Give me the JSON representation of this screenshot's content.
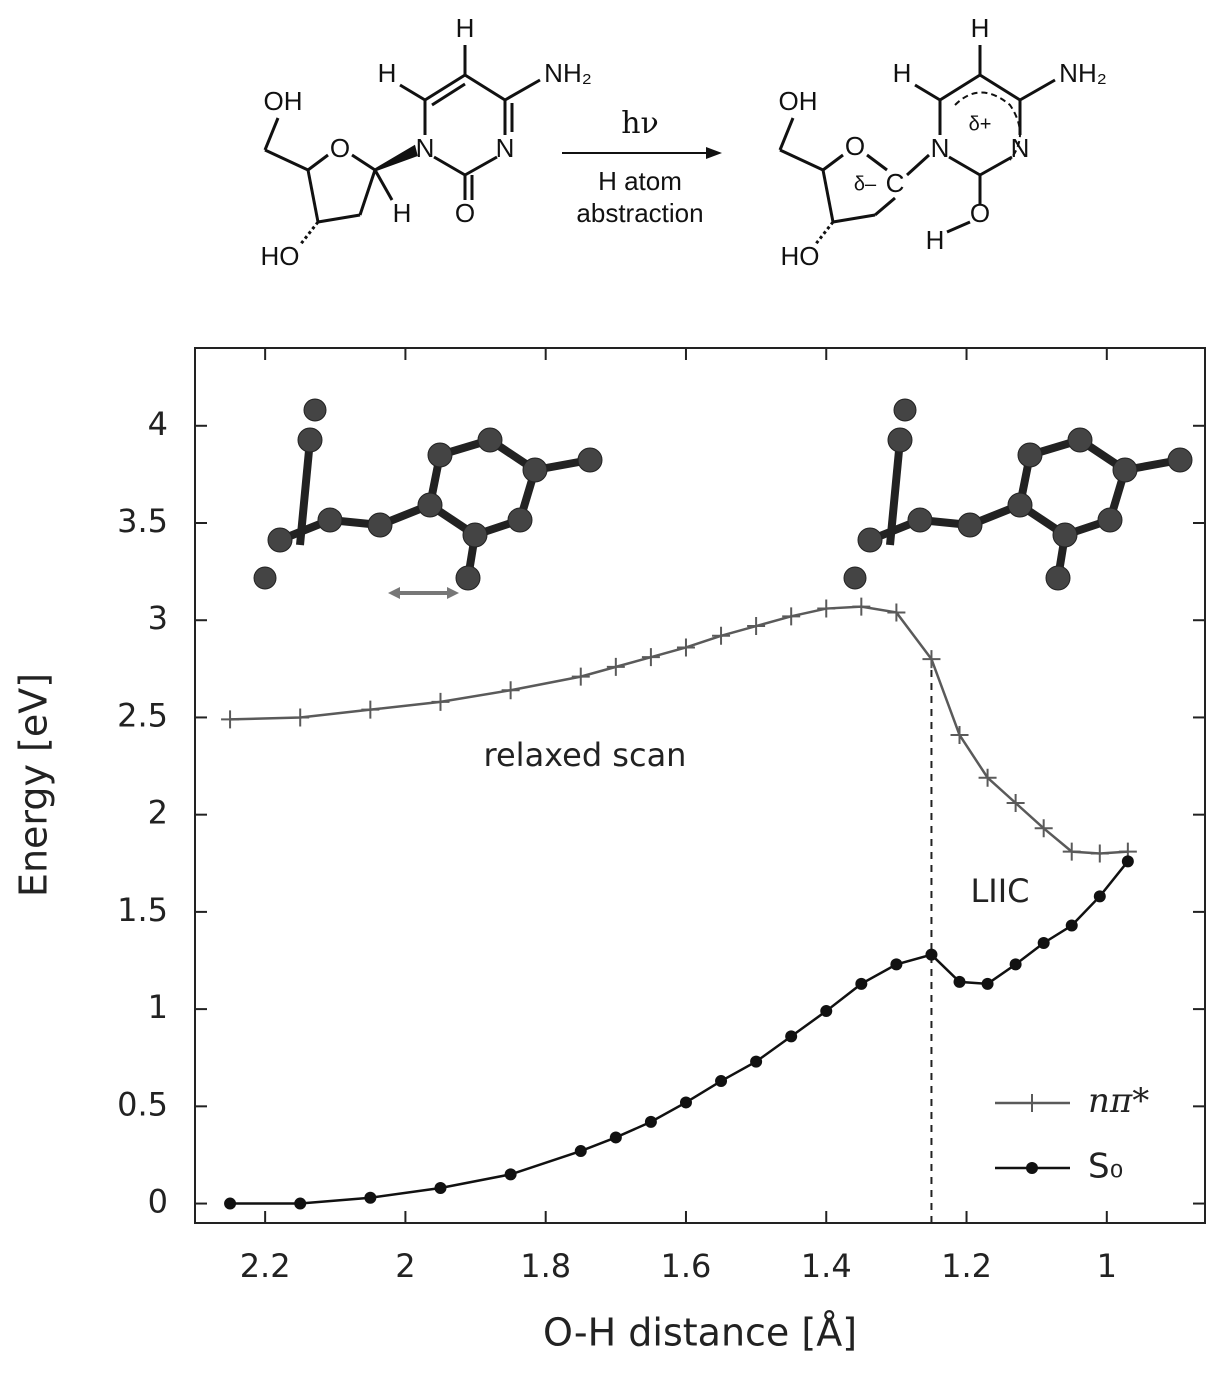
{
  "scheme": {
    "reactant": [
      "OH",
      "O",
      "H",
      "HO",
      "N",
      "H",
      "H",
      "NH₂",
      "N",
      "O"
    ],
    "product": [
      "OH",
      "O",
      "δ–",
      "C",
      "N",
      "H",
      "H",
      "NH₂",
      "δ+",
      "N",
      "O",
      "H",
      "HO"
    ],
    "arrow_above": "hν",
    "arrow_below": [
      "H atom",
      "abstraction"
    ]
  },
  "chart_data": {
    "type": "line",
    "x_label": "O-H distance [Å]",
    "y_label": "Energy [eV]",
    "x": [
      2.25,
      2.15,
      2.05,
      1.95,
      1.85,
      1.75,
      1.7,
      1.65,
      1.6,
      1.55,
      1.5,
      1.45,
      1.4,
      1.35,
      1.3,
      1.25,
      1.21,
      1.17,
      1.13,
      1.09,
      1.05,
      1.01,
      0.97
    ],
    "series": [
      {
        "name": "nπ*",
        "color": "#5a5a5a",
        "marker": "plus",
        "values": [
          2.49,
          2.5,
          2.54,
          2.58,
          2.64,
          2.71,
          2.76,
          2.81,
          2.86,
          2.92,
          2.97,
          3.02,
          3.06,
          3.07,
          3.04,
          2.8,
          2.41,
          2.19,
          2.06,
          1.93,
          1.81,
          1.8,
          1.81
        ]
      },
      {
        "name": "S₀",
        "color": "#111111",
        "marker": "circle",
        "values": [
          0,
          0,
          0.03,
          0.08,
          0.15,
          0.27,
          0.34,
          0.42,
          0.52,
          0.63,
          0.73,
          0.86,
          0.99,
          1.13,
          1.23,
          1.28,
          1.14,
          1.13,
          1.23,
          1.34,
          1.43,
          1.58,
          1.76
        ]
      }
    ],
    "xlim": [
      2.3,
      0.86
    ],
    "ylim": [
      -0.1,
      4.4
    ],
    "xticks": [
      2.2,
      2,
      1.8,
      1.6,
      1.4,
      1.2,
      1
    ],
    "yticks": [
      0,
      0.5,
      1,
      1.5,
      2,
      2.5,
      3,
      3.5,
      4
    ],
    "vline": 1.25,
    "annotations": [
      "relaxed scan",
      "LIIC"
    ],
    "legend": "lower right"
  }
}
